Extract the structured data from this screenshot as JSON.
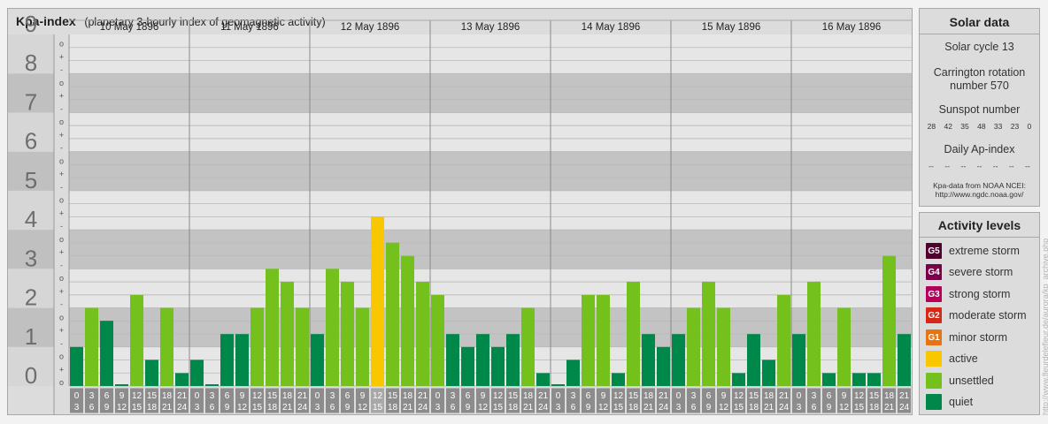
{
  "header": {
    "title": "Kpa-index",
    "subtitle": "(planetary 3-hourly index of geomagnetic activity)"
  },
  "chart_data": {
    "type": "bar",
    "ylim": [
      0,
      9
    ],
    "y_tick_labels": [
      "0",
      "1",
      "2",
      "3",
      "4",
      "5",
      "6",
      "7",
      "8",
      "9"
    ],
    "y_minor_labels": [
      "-",
      "+",
      "o"
    ],
    "days": [
      "10 May 1896",
      "11 May 1896",
      "12 May 1896",
      "13 May 1896",
      "14 May 1896",
      "15 May 1896",
      "16 May 1896"
    ],
    "intervals": [
      {
        "from": "0",
        "to": "3"
      },
      {
        "from": "3",
        "to": "6"
      },
      {
        "from": "6",
        "to": "9"
      },
      {
        "from": "9",
        "to": "12"
      },
      {
        "from": "12",
        "to": "15"
      },
      {
        "from": "15",
        "to": "18"
      },
      {
        "from": "18",
        "to": "21"
      },
      {
        "from": "21",
        "to": "24"
      }
    ],
    "values": [
      [
        1.0,
        2.0,
        1.67,
        0.0,
        2.33,
        0.67,
        2.0,
        0.33
      ],
      [
        0.67,
        0.0,
        1.33,
        1.33,
        2.0,
        3.0,
        2.67,
        2.0
      ],
      [
        1.33,
        3.0,
        2.67,
        2.0,
        4.33,
        3.67,
        3.33,
        2.67
      ],
      [
        2.33,
        1.33,
        1.0,
        1.33,
        1.0,
        1.33,
        2.0,
        0.33
      ],
      [
        0.0,
        0.67,
        2.33,
        2.33,
        0.33,
        2.67,
        1.33,
        1.0
      ],
      [
        1.33,
        2.0,
        2.67,
        2.0,
        0.33,
        1.33,
        0.67,
        2.33
      ],
      [
        1.33,
        2.67,
        0.33,
        2.0,
        0.33,
        0.33,
        3.33,
        1.33
      ]
    ],
    "colors": {
      "quiet": "#00884b",
      "unsettled": "#74c11d",
      "active": "#f9c700",
      "zero_marker": "#00884b"
    }
  },
  "solar": {
    "title": "Solar data",
    "cycle": "Solar cycle 13",
    "carrington_line1": "Carrington rotation",
    "carrington_line2": "number 570",
    "sunspot_title": "Sunspot number",
    "sunspot_values": [
      "28",
      "42",
      "35",
      "48",
      "33",
      "23",
      "0"
    ],
    "ap_title": "Daily Ap-index",
    "ap_values": [
      "--",
      "--",
      "--",
      "--",
      "--",
      "--",
      "--"
    ],
    "source_line1": "Kpa-data from NOAA NCEI:",
    "source_line2": "http://www.ngdc.noaa.gov/"
  },
  "levels": {
    "title": "Activity levels",
    "items": [
      {
        "code": "G5",
        "label": "extreme storm",
        "color": "#52002d"
      },
      {
        "code": "G4",
        "label": "severe storm",
        "color": "#7b0049"
      },
      {
        "code": "G3",
        "label": "strong storm",
        "color": "#b5005a"
      },
      {
        "code": "G2",
        "label": "moderate storm",
        "color": "#d72716"
      },
      {
        "code": "G1",
        "label": "minor storm",
        "color": "#e87313"
      },
      {
        "code": "",
        "label": "active",
        "color": "#f9c700"
      },
      {
        "code": "",
        "label": "unsettled",
        "color": "#74c11d"
      },
      {
        "code": "",
        "label": "quiet",
        "color": "#00884b"
      }
    ]
  },
  "watermark": "http://www.fleurdelefleur.de/aurora/kp_archive.php"
}
